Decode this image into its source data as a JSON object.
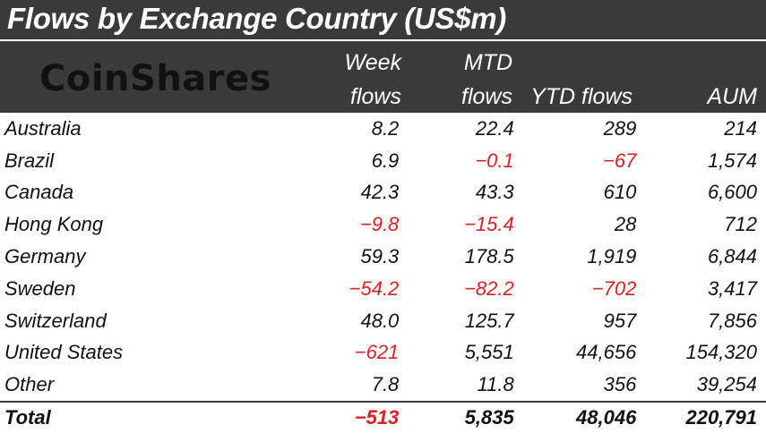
{
  "title": "Flows by Exchange Country (US$m)",
  "logo_text": "CoinShares",
  "colors": {
    "header_bg": "#3a3a3a",
    "negative": "#e02020",
    "text": "#111111"
  },
  "columns": {
    "week": [
      "Week",
      "flows"
    ],
    "mtd": [
      "MTD",
      "flows"
    ],
    "ytd": "YTD flows",
    "aum": "AUM"
  },
  "chart_data": {
    "type": "table",
    "title": "Flows by Exchange Country (US$m)",
    "columns": [
      "Week flows",
      "MTD flows",
      "YTD flows",
      "AUM"
    ],
    "rows": [
      {
        "country": "Australia",
        "week": "8.2",
        "mtd": "22.4",
        "ytd": "289",
        "aum": "214"
      },
      {
        "country": "Brazil",
        "week": "6.9",
        "mtd": "-0.1",
        "ytd": "-67",
        "aum": "1,574"
      },
      {
        "country": "Canada",
        "week": "42.3",
        "mtd": "43.3",
        "ytd": "610",
        "aum": "6,600"
      },
      {
        "country": "Hong Kong",
        "week": "-9.8",
        "mtd": "-15.4",
        "ytd": "28",
        "aum": "712"
      },
      {
        "country": "Germany",
        "week": "59.3",
        "mtd": "178.5",
        "ytd": "1,919",
        "aum": "6,844"
      },
      {
        "country": "Sweden",
        "week": "-54.2",
        "mtd": "-82.2",
        "ytd": "-702",
        "aum": "3,417"
      },
      {
        "country": "Switzerland",
        "week": "48.0",
        "mtd": "125.7",
        "ytd": "957",
        "aum": "7,856"
      },
      {
        "country": "United States",
        "week": "-621",
        "mtd": "5,551",
        "ytd": "44,656",
        "aum": "154,320"
      },
      {
        "country": "Other",
        "week": "7.8",
        "mtd": "11.8",
        "ytd": "356",
        "aum": "39,254"
      }
    ],
    "total": {
      "country": "Total",
      "week": "-513",
      "mtd": "5,835",
      "ytd": "48,046",
      "aum": "220,791"
    }
  }
}
